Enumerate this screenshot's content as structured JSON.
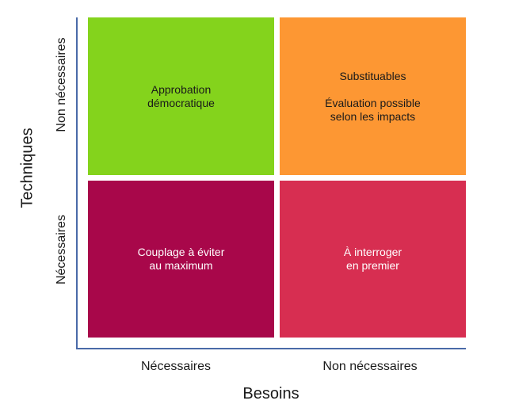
{
  "colors": {
    "top_left": "#84d31c",
    "top_right": "#fd9733",
    "bottom_left": "#a8074a",
    "bottom_right": "#d72e51",
    "axis": "#4a6aa8"
  },
  "x_axis": {
    "title": "Besoins",
    "ticks": [
      "Nécessaires",
      "Non nécessaires"
    ]
  },
  "y_axis": {
    "title": "Techniques",
    "ticks": [
      "Non nécessaires",
      "Nécessaires"
    ]
  },
  "quadrants": {
    "top_left": {
      "lines": [
        "Approbation",
        "démocratique"
      ]
    },
    "top_right": {
      "lines": [
        "Substituables",
        "Évaluation possible",
        "selon les impacts"
      ]
    },
    "bottom_left": {
      "lines": [
        "Couplage à éviter",
        "au maximum"
      ]
    },
    "bottom_right": {
      "lines": [
        "À interroger",
        "en premier"
      ]
    }
  }
}
